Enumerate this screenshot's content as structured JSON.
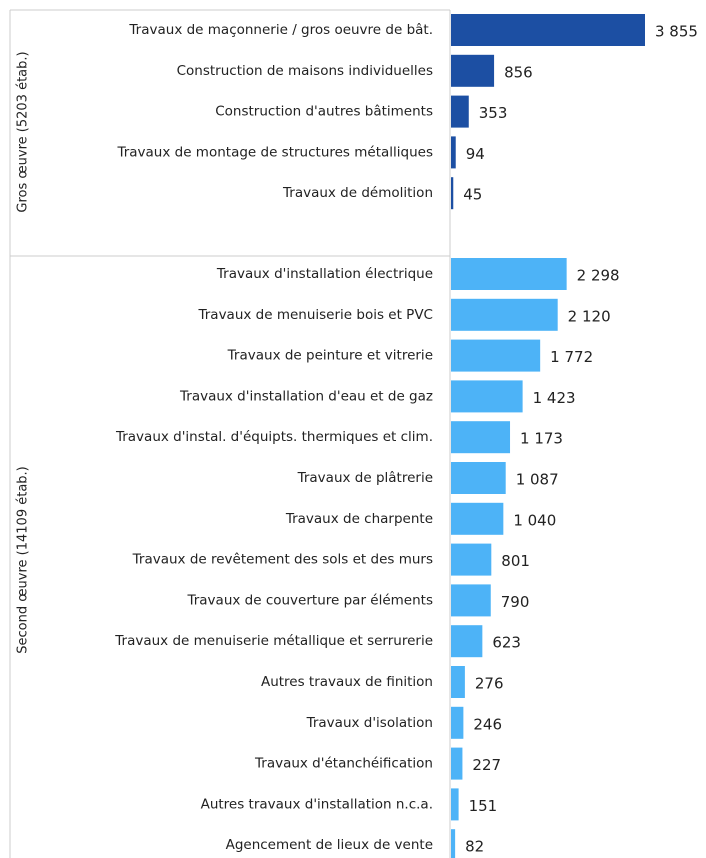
{
  "chart_data": [
    {
      "type": "bar",
      "group": "Gros œuvre (5203 étab.)",
      "color": "#1c4fa3",
      "categories": [
        "Travaux de maçonnerie / gros oeuvre de bât.",
        "Construction de maisons individuelles",
        "Construction d'autres bâtiments",
        "Travaux de montage de structures métalliques",
        "Travaux de démolition"
      ],
      "values": [
        3855,
        856,
        353,
        94,
        45
      ],
      "value_labels": [
        "3 855",
        "856",
        "353",
        "94",
        "45"
      ]
    },
    {
      "type": "bar",
      "group": "Second œuvre (14109 étab.)",
      "color": "#4db3f7",
      "categories": [
        "Travaux d'installation électrique",
        "Travaux de menuiserie bois et PVC",
        "Travaux de peinture et vitrerie",
        "Travaux d'installation d'eau et de gaz",
        "Travaux d'instal. d'équipts. thermiques et clim.",
        "Travaux de plâtrerie",
        "Travaux de charpente",
        "Travaux de revêtement des sols et des murs",
        "Travaux de couverture par éléments",
        "Travaux de menuiserie métallique et serrurerie",
        "Autres travaux de finition",
        "Travaux d'isolation",
        "Travaux d'étanchéification",
        "Autres travaux d'installation n.c.a.",
        "Agencement de lieux de vente"
      ],
      "values": [
        2298,
        2120,
        1772,
        1423,
        1173,
        1087,
        1040,
        801,
        790,
        623,
        276,
        246,
        227,
        151,
        82
      ],
      "value_labels": [
        "2 298",
        "2 120",
        "1 772",
        "1 423",
        "1 173",
        "1 087",
        "1 040",
        "801",
        "790",
        "623",
        "276",
        "246",
        "227",
        "151",
        "82"
      ]
    }
  ]
}
